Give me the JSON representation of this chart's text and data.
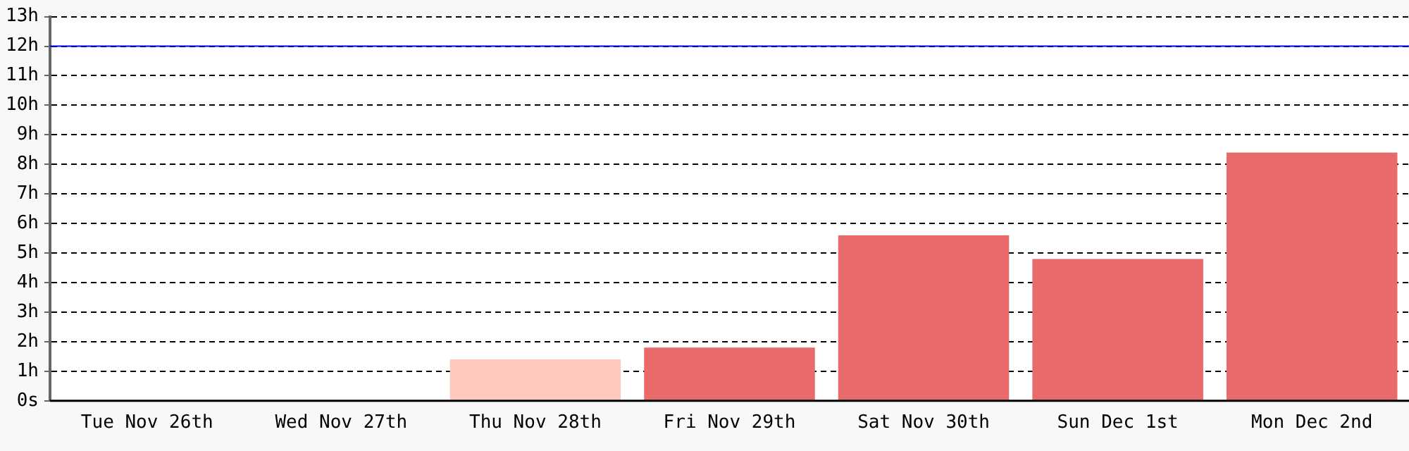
{
  "chart_data": {
    "type": "bar",
    "categories": [
      "Tue Nov 26th",
      "Wed Nov 27th",
      "Thu Nov 28th",
      "Fri Nov 29th",
      "Sat Nov 30th",
      "Sun Dec 1st",
      "Mon Dec 2nd"
    ],
    "values": [
      0,
      0,
      1.4,
      1.8,
      5.6,
      4.8,
      8.4
    ],
    "colors": [
      "#e86a6a",
      "#e86a6a",
      "#ffc8bf",
      "#e86a6a",
      "#e86a6a",
      "#e86a6a",
      "#e86a6a"
    ],
    "ylim": [
      0,
      13
    ],
    "yticks": [
      {
        "value": 0,
        "label": "0s"
      },
      {
        "value": 1,
        "label": "1h"
      },
      {
        "value": 2,
        "label": "2h"
      },
      {
        "value": 3,
        "label": "3h"
      },
      {
        "value": 4,
        "label": "4h"
      },
      {
        "value": 5,
        "label": "5h"
      },
      {
        "value": 6,
        "label": "6h"
      },
      {
        "value": 7,
        "label": "7h"
      },
      {
        "value": 8,
        "label": "8h"
      },
      {
        "value": 9,
        "label": "9h"
      },
      {
        "value": 10,
        "label": "10h"
      },
      {
        "value": 11,
        "label": "11h"
      },
      {
        "value": 12,
        "label": "12h"
      },
      {
        "value": 13,
        "label": "13h"
      }
    ],
    "grid": "y",
    "ref_lines": [
      {
        "axis": "y",
        "value": 12,
        "color": "#0000ff"
      }
    ]
  }
}
